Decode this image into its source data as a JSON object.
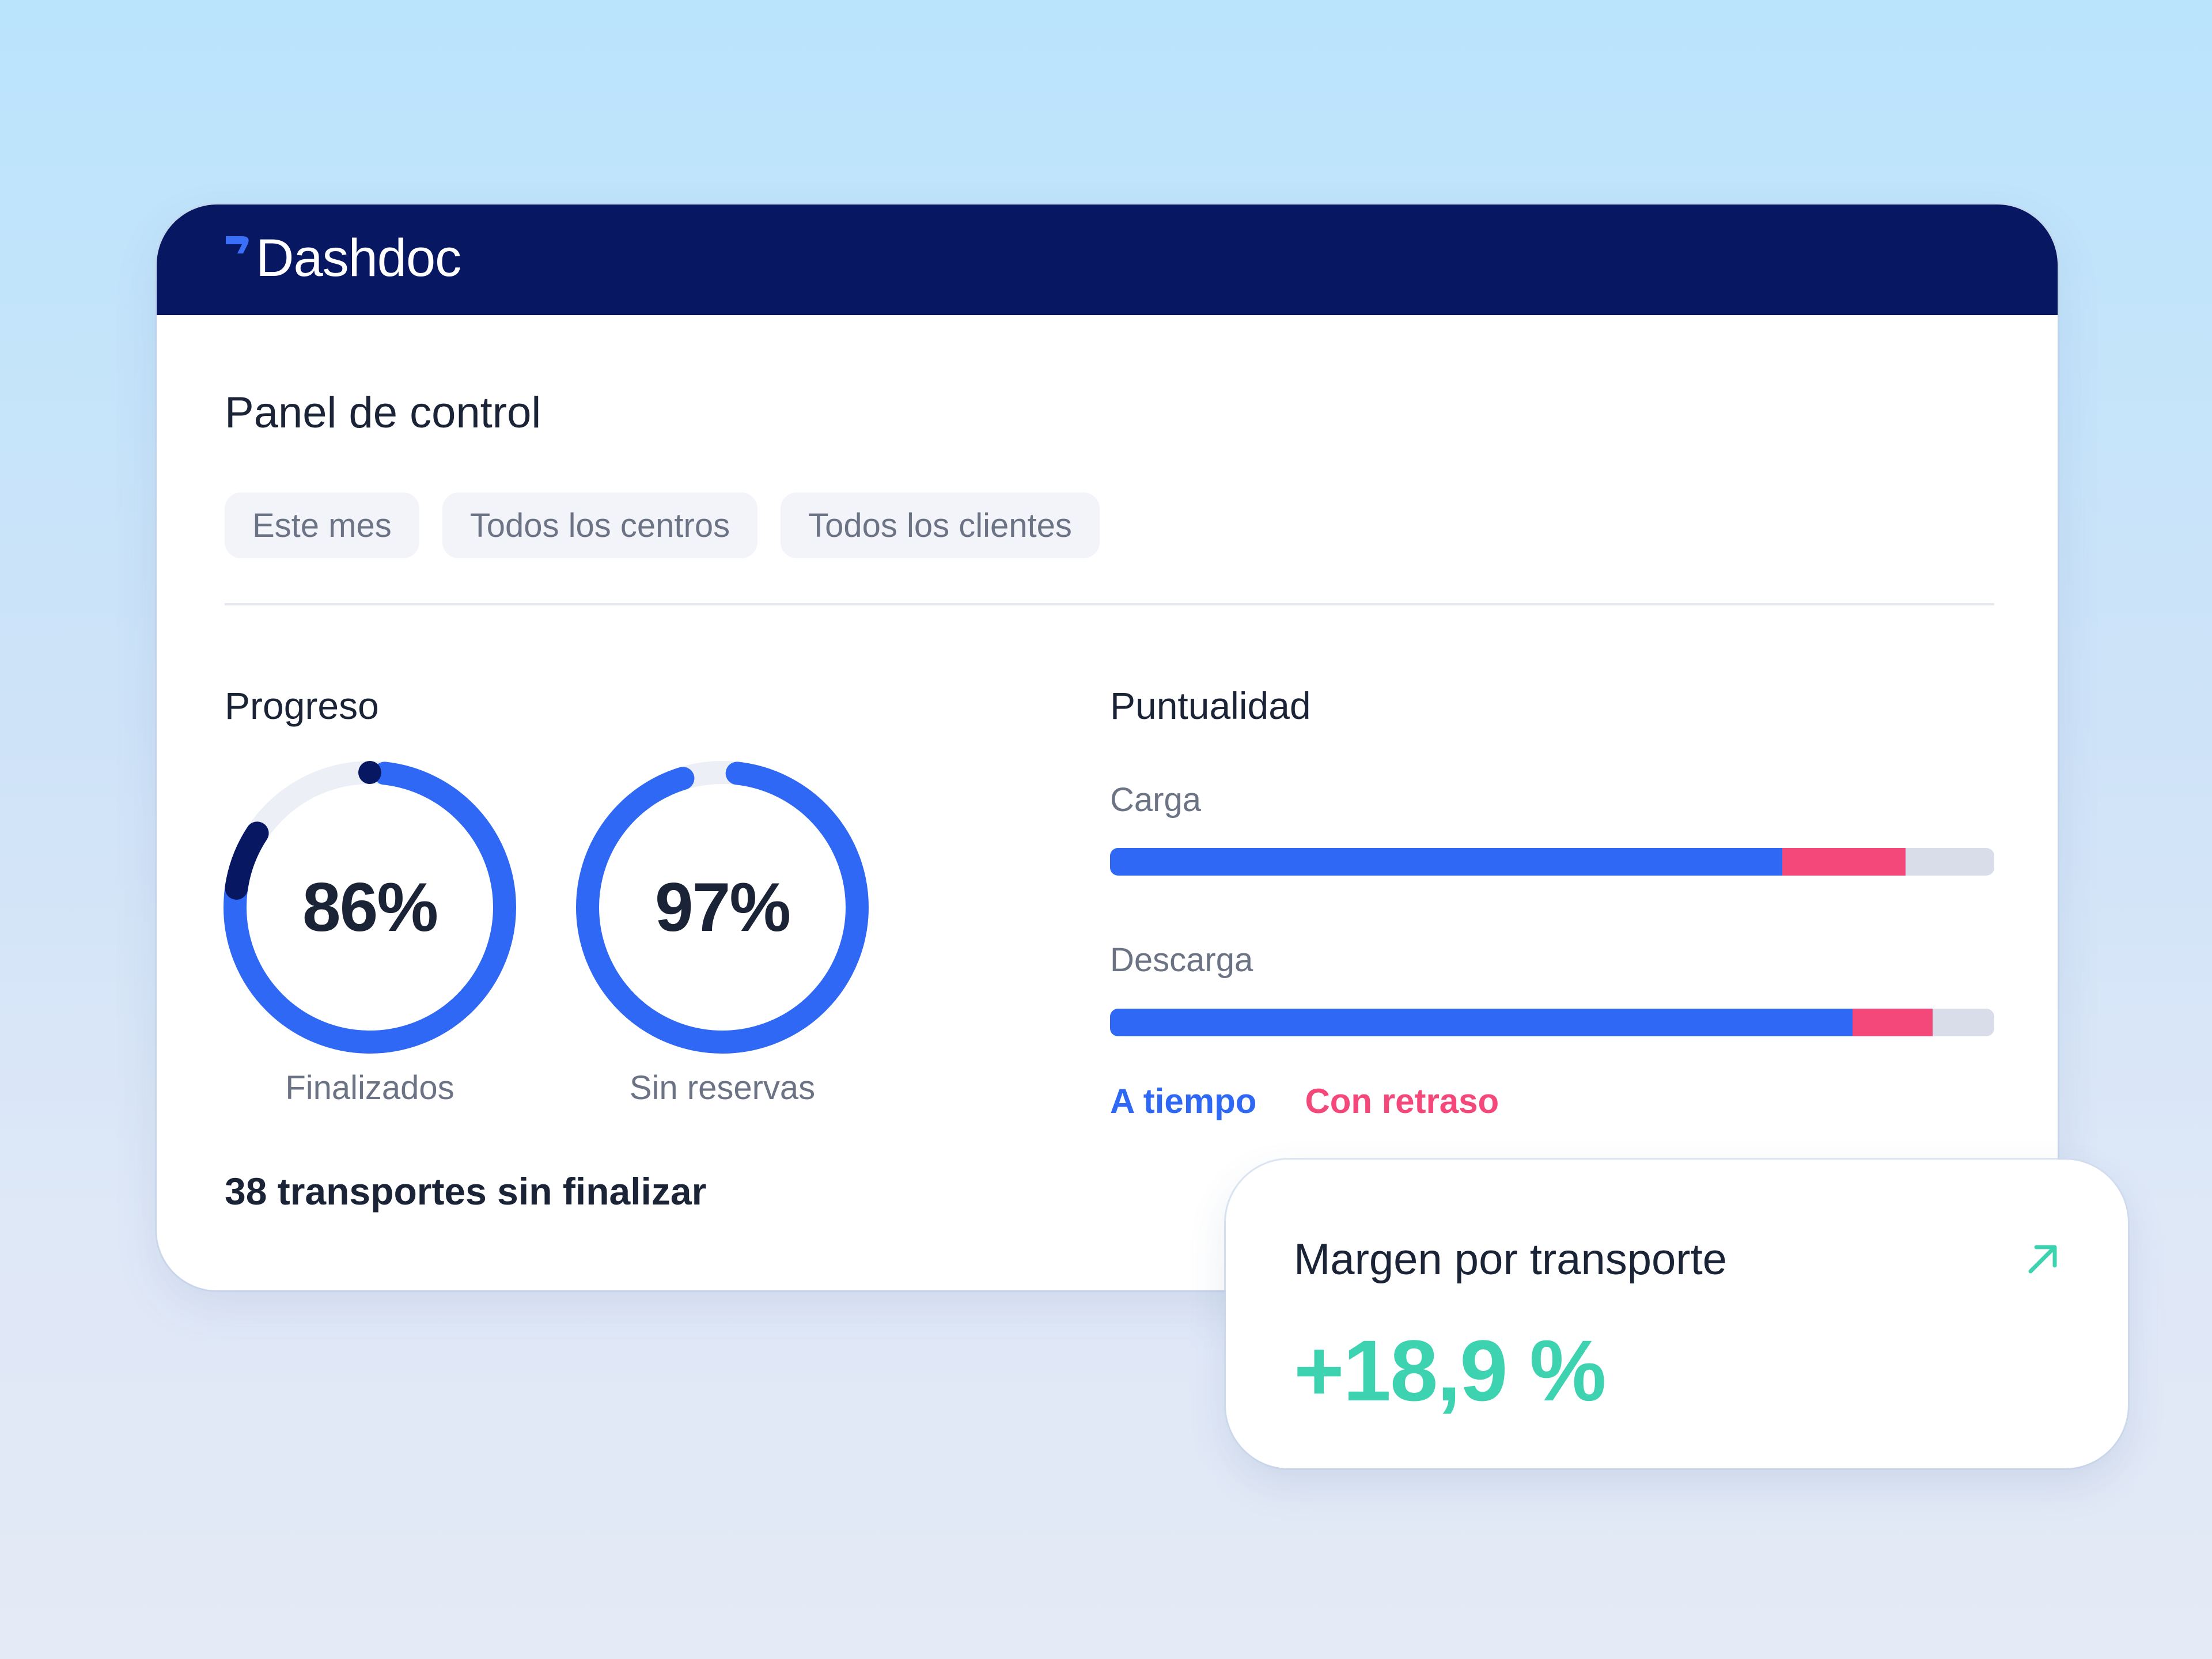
{
  "app": {
    "logo_text": "Dashdoc",
    "brand_color": "#081761"
  },
  "page": {
    "title": "Panel de control"
  },
  "filters": [
    {
      "label": "Este mes"
    },
    {
      "label": "Todos los centros"
    },
    {
      "label": "Todos los clientes"
    }
  ],
  "progreso": {
    "title": "Progreso",
    "rings": [
      {
        "value": "86%",
        "percent": 86,
        "label": "Finalizados",
        "color": "#2f68f5",
        "accent_color": "#081761"
      },
      {
        "value": "97%",
        "percent": 97,
        "label": "Sin reservas",
        "color": "#2f68f5"
      }
    ],
    "pending_text": "38 transportes sin finalizar"
  },
  "puntualidad": {
    "title": "Puntualidad",
    "bars": [
      {
        "label": "Carga",
        "on_time_percent": 76,
        "late_percent": 14
      },
      {
        "label": "Descarga",
        "on_time_percent": 84,
        "late_percent": 9
      }
    ],
    "legend": {
      "on_time": "A tiempo",
      "late": "Con retraso"
    },
    "colors": {
      "on_time": "#2f68f5",
      "late": "#f5487a",
      "rest": "#d9dde9"
    }
  },
  "margin": {
    "title": "Margen por transporte",
    "value": "+18,9 %",
    "trend_icon": "arrow-up-right-icon",
    "color": "#3ed3b0"
  }
}
